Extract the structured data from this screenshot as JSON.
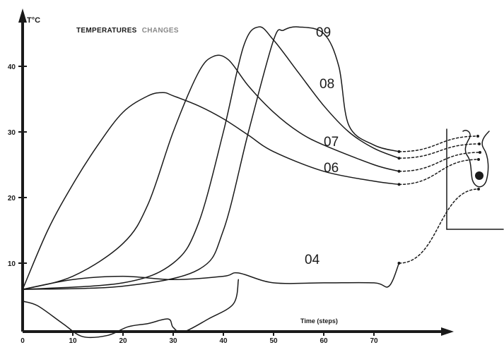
{
  "chart_data": {
    "type": "line",
    "title": "TEMPERATURES",
    "title_accent": "CHANGES",
    "ylabel": "T°C",
    "xlabel": "Time (steps)",
    "xlim": [
      0,
      82
    ],
    "ylim": [
      0,
      48
    ],
    "x_ticks": [
      "0",
      "10",
      "20",
      "30",
      "40",
      "50",
      "60",
      "70"
    ],
    "y_ticks": [
      "10",
      "20",
      "30",
      "40"
    ],
    "grid": false,
    "series": [
      {
        "name": "09",
        "x": [
          0,
          20,
          35,
          40,
          45,
          50,
          52,
          55,
          60,
          63,
          65,
          70,
          75
        ],
        "y": [
          6,
          6.5,
          9,
          15,
          30,
          44,
          45.5,
          46,
          45,
          40,
          31,
          28,
          27
        ]
      },
      {
        "name": "08",
        "x": [
          0,
          20,
          30,
          35,
          40,
          44,
          47,
          50,
          55,
          60,
          65,
          70,
          75
        ],
        "y": [
          6,
          7,
          10,
          16,
          30,
          43,
          46,
          44,
          39,
          34,
          30,
          27.5,
          26
        ]
      },
      {
        "name": "07",
        "x": [
          0,
          10,
          20,
          25,
          30,
          35,
          38,
          41,
          45,
          50,
          55,
          60,
          70,
          75
        ],
        "y": [
          6,
          8,
          13,
          19,
          30,
          39,
          41.5,
          41,
          37,
          33,
          30,
          28,
          25,
          24
        ]
      },
      {
        "name": "06",
        "x": [
          0,
          5,
          10,
          15,
          20,
          25,
          28,
          30,
          35,
          40,
          45,
          50,
          60,
          70,
          75
        ],
        "y": [
          6,
          15,
          22,
          28,
          33,
          35.5,
          36,
          35.5,
          34,
          32,
          29.5,
          27,
          24,
          22.5,
          22
        ]
      },
      {
        "name": "04",
        "x": [
          0,
          10,
          20,
          30,
          40,
          43,
          50,
          60,
          70,
          73,
          75
        ],
        "y": [
          6,
          7.5,
          8,
          7.5,
          8,
          8.5,
          7,
          7,
          7,
          6.5,
          10
        ]
      }
    ],
    "baseline": {
      "x": [
        0,
        3,
        8,
        12,
        17,
        21,
        25,
        29,
        30,
        32,
        37,
        42,
        43
      ],
      "y": [
        4.2,
        3.5,
        0.8,
        -1.2,
        -1,
        0.3,
        0.8,
        1.5,
        0.2,
        -0.5,
        1.5,
        3.8,
        7.5
      ]
    }
  }
}
